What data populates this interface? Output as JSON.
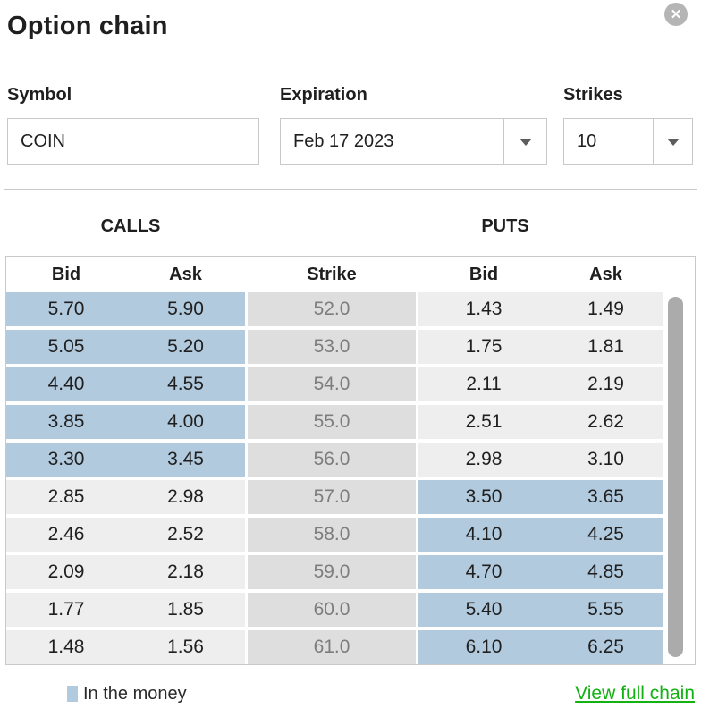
{
  "dialog": {
    "title": "Option chain"
  },
  "form": {
    "symbol": {
      "label": "Symbol",
      "value": "COIN"
    },
    "expiration": {
      "label": "Expiration",
      "value": "Feb 17 2023"
    },
    "strikes": {
      "label": "Strikes",
      "value": "10"
    }
  },
  "table": {
    "calls_header": "CALLS",
    "puts_header": "PUTS",
    "columns": [
      "Bid",
      "Ask",
      "Strike",
      "Bid",
      "Ask"
    ],
    "rows": [
      {
        "call_bid": "5.70",
        "call_ask": "5.90",
        "strike": "52.0",
        "put_bid": "1.43",
        "put_ask": "1.49",
        "call_itm": true,
        "put_itm": false
      },
      {
        "call_bid": "5.05",
        "call_ask": "5.20",
        "strike": "53.0",
        "put_bid": "1.75",
        "put_ask": "1.81",
        "call_itm": true,
        "put_itm": false
      },
      {
        "call_bid": "4.40",
        "call_ask": "4.55",
        "strike": "54.0",
        "put_bid": "2.11",
        "put_ask": "2.19",
        "call_itm": true,
        "put_itm": false
      },
      {
        "call_bid": "3.85",
        "call_ask": "4.00",
        "strike": "55.0",
        "put_bid": "2.51",
        "put_ask": "2.62",
        "call_itm": true,
        "put_itm": false
      },
      {
        "call_bid": "3.30",
        "call_ask": "3.45",
        "strike": "56.0",
        "put_bid": "2.98",
        "put_ask": "3.10",
        "call_itm": true,
        "put_itm": false
      },
      {
        "call_bid": "2.85",
        "call_ask": "2.98",
        "strike": "57.0",
        "put_bid": "3.50",
        "put_ask": "3.65",
        "call_itm": false,
        "put_itm": true
      },
      {
        "call_bid": "2.46",
        "call_ask": "2.52",
        "strike": "58.0",
        "put_bid": "4.10",
        "put_ask": "4.25",
        "call_itm": false,
        "put_itm": true
      },
      {
        "call_bid": "2.09",
        "call_ask": "2.18",
        "strike": "59.0",
        "put_bid": "4.70",
        "put_ask": "4.85",
        "call_itm": false,
        "put_itm": true
      },
      {
        "call_bid": "1.77",
        "call_ask": "1.85",
        "strike": "60.0",
        "put_bid": "5.40",
        "put_ask": "5.55",
        "call_itm": false,
        "put_itm": true
      },
      {
        "call_bid": "1.48",
        "call_ask": "1.56",
        "strike": "61.0",
        "put_bid": "6.10",
        "put_ask": "6.25",
        "call_itm": false,
        "put_itm": true
      }
    ]
  },
  "legend": {
    "label": "In the money"
  },
  "footer_link": {
    "label": "View full chain"
  },
  "icons": {
    "close": "✕",
    "dropdown_arrow": "triangle-down"
  },
  "colors": {
    "itm": "#b2cade",
    "otm": "#eeeeee",
    "strike_bg": "#dedede",
    "strike_text": "#7d7d7d",
    "border": "#c9c9c9",
    "link_green": "#12b212",
    "scrollbar": "#ababab",
    "close_bg": "#b5b5b5",
    "text": "#1f1f1f"
  }
}
